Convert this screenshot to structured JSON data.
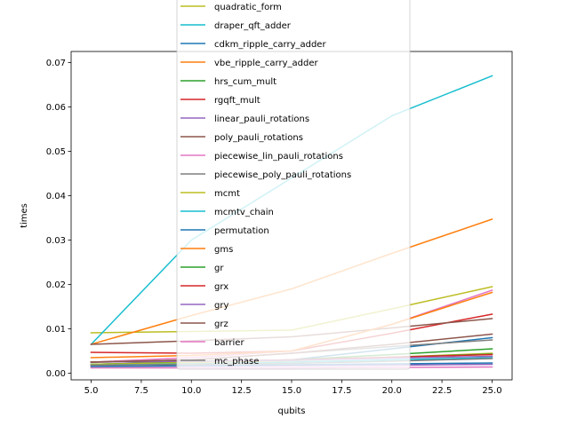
{
  "chart_data": {
    "type": "line",
    "title": "",
    "xlabel": "qubits",
    "ylabel": "times",
    "xlim": [
      4.0,
      26.0
    ],
    "ylim": [
      -0.0015,
      0.0725
    ],
    "x_ticks": [
      "5.0",
      "7.5",
      "10.0",
      "12.5",
      "15.0",
      "17.5",
      "20.0",
      "22.5",
      "25.0"
    ],
    "y_ticks": [
      "0.00",
      "0.01",
      "0.02",
      "0.03",
      "0.04",
      "0.05",
      "0.06",
      "0.07"
    ],
    "grid": false,
    "legend_position": "upper center",
    "x": [
      5,
      10,
      15,
      20,
      25
    ],
    "series": [
      {
        "name": "quadratic_form",
        "color": "#bcbd22",
        "values": [
          0.0091,
          0.0094,
          0.0097,
          0.0145,
          0.0195
        ]
      },
      {
        "name": "draper_qft_adder",
        "color": "#17becf",
        "values": [
          0.0065,
          0.03,
          0.044,
          0.058,
          0.067
        ]
      },
      {
        "name": "cdkm_ripple_carry_adder",
        "color": "#1f77b4",
        "values": [
          0.002,
          0.0025,
          0.003,
          0.0055,
          0.008
        ]
      },
      {
        "name": "vbe_ripple_carry_adder",
        "color": "#ff7f0e",
        "values": [
          0.0065,
          0.013,
          0.019,
          0.027,
          0.0347
        ]
      },
      {
        "name": "hrs_cum_mult",
        "color": "#2ca02c",
        "values": [
          0.002,
          0.0025,
          0.003,
          0.0042,
          0.0055
        ]
      },
      {
        "name": "rgqft_mult",
        "color": "#d62728",
        "values": [
          0.0047,
          0.0045,
          0.005,
          0.009,
          0.0133
        ]
      },
      {
        "name": "linear_pauli_rotations",
        "color": "#9467bd",
        "values": [
          0.0015,
          0.0016,
          0.0017,
          0.0018,
          0.002
        ]
      },
      {
        "name": "poly_pauli_rotations",
        "color": "#8c564b",
        "values": [
          0.0065,
          0.0073,
          0.0082,
          0.0102,
          0.0123
        ]
      },
      {
        "name": "piecewise_lin_pauli_rotations",
        "color": "#e377c2",
        "values": [
          0.0025,
          0.0035,
          0.005,
          0.011,
          0.0187
        ]
      },
      {
        "name": "piecewise_poly_pauli_rotations",
        "color": "#7f7f7f",
        "values": [
          0.0025,
          0.003,
          0.0045,
          0.006,
          0.0075
        ]
      },
      {
        "name": "mcmt",
        "color": "#bcbd22",
        "values": [
          0.002,
          0.0024,
          0.0028,
          0.0036,
          0.0045
        ]
      },
      {
        "name": "mcmtv_chain",
        "color": "#17becf",
        "values": [
          0.0018,
          0.0021,
          0.0025,
          0.003,
          0.0035
        ]
      },
      {
        "name": "permutation",
        "color": "#1f77b4",
        "values": [
          0.0015,
          0.0017,
          0.0019,
          0.0021,
          0.0023
        ]
      },
      {
        "name": "gms",
        "color": "#ff7f0e",
        "values": [
          0.0035,
          0.004,
          0.005,
          0.011,
          0.0182
        ]
      },
      {
        "name": "gr",
        "color": "#2ca02c",
        "values": [
          0.0025,
          0.0027,
          0.003,
          0.0036,
          0.0043
        ]
      },
      {
        "name": "grx",
        "color": "#d62728",
        "values": [
          0.0025,
          0.0027,
          0.003,
          0.0036,
          0.0042
        ]
      },
      {
        "name": "gry",
        "color": "#9467bd",
        "values": [
          0.0025,
          0.0027,
          0.0029,
          0.0034,
          0.0038
        ]
      },
      {
        "name": "grz",
        "color": "#8c564b",
        "values": [
          0.0025,
          0.003,
          0.0045,
          0.0065,
          0.0088
        ]
      },
      {
        "name": "barrier",
        "color": "#e377c2",
        "values": [
          0.0012,
          0.0012,
          0.0012,
          0.0013,
          0.0014
        ]
      },
      {
        "name": "mc_phase",
        "color": "#7f7f7f",
        "values": [
          0.0018,
          0.002,
          0.0022,
          0.0027,
          0.0033
        ]
      }
    ]
  }
}
